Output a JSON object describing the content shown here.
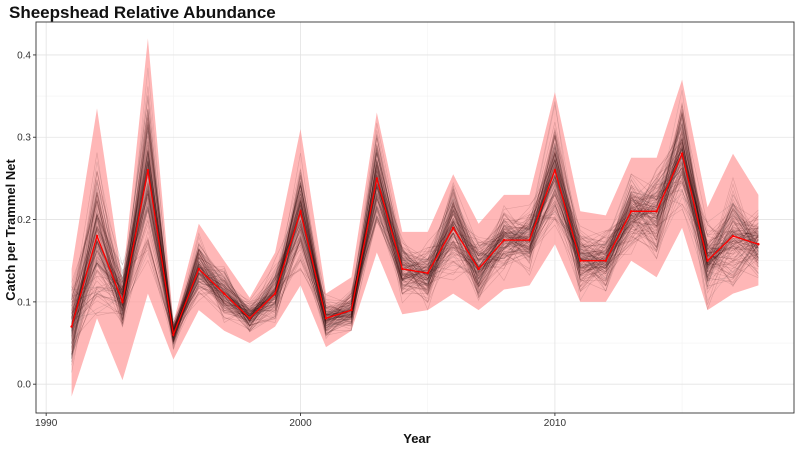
{
  "chart_data": {
    "type": "line",
    "title": "Sheepshead Relative Abundance",
    "xlabel": "Year",
    "ylabel": "Catch per Trammel Net",
    "xlim": [
      1989.6,
      2019.4
    ],
    "ylim": [
      -0.035,
      0.44
    ],
    "x_ticks": [
      1990,
      2000,
      2010
    ],
    "y_ticks": [
      0.0,
      0.1,
      0.2,
      0.3,
      0.4
    ],
    "x_tick_labels": [
      "1990",
      "2000",
      "2010"
    ],
    "y_tick_labels": [
      "0.0",
      "0.1",
      "0.2",
      "0.3",
      "0.4"
    ],
    "grid": true,
    "legend": "none",
    "x": [
      1991,
      1992,
      1993,
      1994,
      1995,
      1996,
      1997,
      1998,
      1999,
      2000,
      2001,
      2002,
      2003,
      2004,
      2005,
      2006,
      2007,
      2008,
      2009,
      2010,
      2011,
      2012,
      2013,
      2014,
      2015,
      2016,
      2017,
      2018
    ],
    "series": [
      {
        "values": [
          0.07,
          0.18,
          0.1,
          0.26,
          0.06,
          0.14,
          0.11,
          0.08,
          0.11,
          0.21,
          0.08,
          0.09,
          0.25,
          0.14,
          0.135,
          0.19,
          0.14,
          0.175,
          0.175,
          0.26,
          0.15,
          0.15,
          0.21,
          0.21,
          0.28,
          0.15,
          0.18,
          0.17
        ],
        "color": "#ff0000"
      }
    ],
    "band": {
      "lower": [
        -0.015,
        0.08,
        0.005,
        0.11,
        0.03,
        0.09,
        0.065,
        0.05,
        0.07,
        0.12,
        0.045,
        0.065,
        0.16,
        0.085,
        0.09,
        0.11,
        0.09,
        0.115,
        0.12,
        0.17,
        0.1,
        0.1,
        0.15,
        0.13,
        0.19,
        0.09,
        0.11,
        0.12
      ],
      "upper": [
        0.14,
        0.335,
        0.125,
        0.42,
        0.075,
        0.195,
        0.15,
        0.105,
        0.16,
        0.31,
        0.11,
        0.13,
        0.33,
        0.185,
        0.185,
        0.255,
        0.195,
        0.23,
        0.23,
        0.355,
        0.21,
        0.205,
        0.275,
        0.275,
        0.37,
        0.215,
        0.28,
        0.23
      ],
      "color": "#ff9999"
    },
    "simulation_color": "#3a0a0a"
  }
}
